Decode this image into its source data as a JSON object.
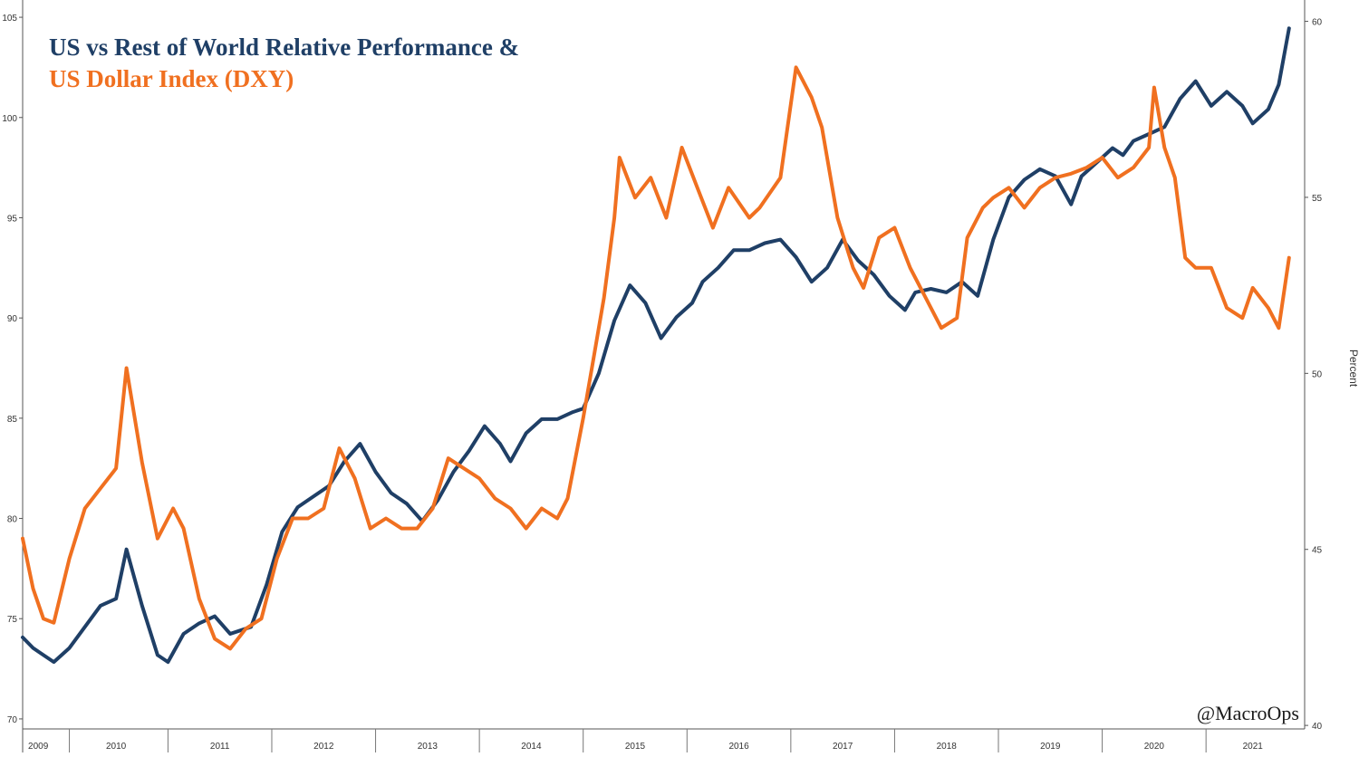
{
  "chart_data": {
    "type": "line",
    "title_line1_main": "US vs Rest of World Relative Performance",
    "title_line1_amp": "&",
    "title_line2": "US Dollar Index (DXY)",
    "watermark": "@MacroOps",
    "left_axis": {
      "range": [
        69.5,
        105.5
      ],
      "ticks": [
        "70",
        "75",
        "80",
        "85",
        "90",
        "95",
        "100",
        "105"
      ]
    },
    "right_axis": {
      "label": "Percent",
      "range": [
        39.9,
        60.4
      ],
      "ticks": [
        "40",
        "45",
        "50",
        "55",
        "60"
      ]
    },
    "x_range": [
      2009.0,
      2021.35
    ],
    "x_tick_labels": [
      "2009",
      "2010",
      "2011",
      "2012",
      "2013",
      "2014",
      "2015",
      "2016",
      "2017",
      "2018",
      "2019",
      "2020",
      "2021"
    ],
    "x_label_positions": [
      2009.15,
      2009.9,
      2010.9,
      2011.9,
      2012.9,
      2013.9,
      2014.9,
      2015.9,
      2016.9,
      2017.9,
      2018.9,
      2019.9,
      2020.85
    ],
    "x_separators": [
      2009.45,
      2010.4,
      2011.4,
      2012.4,
      2013.4,
      2014.4,
      2015.4,
      2016.4,
      2017.4,
      2018.4,
      2019.4,
      2020.4
    ],
    "series": [
      {
        "name": "US vs Rest of World Relative Performance",
        "axis": "right",
        "color": "#1f3f66",
        "x": [
          2009.0,
          2009.1,
          2009.2,
          2009.3,
          2009.45,
          2009.6,
          2009.75,
          2009.9,
          2010.0,
          2010.15,
          2010.3,
          2010.4,
          2010.55,
          2010.7,
          2010.85,
          2011.0,
          2011.2,
          2011.35,
          2011.5,
          2011.65,
          2011.8,
          2011.95,
          2012.1,
          2012.25,
          2012.4,
          2012.55,
          2012.7,
          2012.85,
          2013.0,
          2013.15,
          2013.3,
          2013.45,
          2013.6,
          2013.7,
          2013.85,
          2014.0,
          2014.15,
          2014.3,
          2014.4,
          2014.55,
          2014.7,
          2014.85,
          2015.0,
          2015.15,
          2015.3,
          2015.45,
          2015.55,
          2015.7,
          2015.85,
          2016.0,
          2016.15,
          2016.3,
          2016.45,
          2016.6,
          2016.75,
          2016.9,
          2017.05,
          2017.2,
          2017.35,
          2017.5,
          2017.6,
          2017.75,
          2017.9,
          2018.05,
          2018.2,
          2018.35,
          2018.5,
          2018.65,
          2018.8,
          2018.95,
          2019.1,
          2019.2,
          2019.35,
          2019.5,
          2019.6,
          2019.7,
          2019.85,
          2020.0,
          2020.15,
          2020.3,
          2020.45,
          2020.6,
          2020.75,
          2020.85,
          2021.0,
          2021.1,
          2021.2
        ],
        "y": [
          42.5,
          42.2,
          42.0,
          41.8,
          42.2,
          42.8,
          43.4,
          43.6,
          45.0,
          43.4,
          42.0,
          41.8,
          42.6,
          42.9,
          43.1,
          42.6,
          42.8,
          44.0,
          45.5,
          46.2,
          46.5,
          46.8,
          47.5,
          48.0,
          47.2,
          46.6,
          46.3,
          45.8,
          46.4,
          47.2,
          47.8,
          48.5,
          48.0,
          47.5,
          48.3,
          48.7,
          48.7,
          48.9,
          49.0,
          50.0,
          51.5,
          52.5,
          52.0,
          51.0,
          51.6,
          52.0,
          52.6,
          53.0,
          53.5,
          53.5,
          53.7,
          53.8,
          53.3,
          52.6,
          53.0,
          53.8,
          53.2,
          52.8,
          52.2,
          51.8,
          52.3,
          52.4,
          52.3,
          52.6,
          52.2,
          53.8,
          55.0,
          55.5,
          55.8,
          55.6,
          54.8,
          55.6,
          56.0,
          56.4,
          56.2,
          56.6,
          56.8,
          57.0,
          57.8,
          58.3,
          57.6,
          58.0,
          57.6,
          57.1,
          57.5,
          58.2,
          59.8
        ]
      },
      {
        "name": "US Dollar Index (DXY)",
        "axis": "left",
        "color": "#f07020",
        "x": [
          2009.0,
          2009.1,
          2009.2,
          2009.3,
          2009.45,
          2009.6,
          2009.75,
          2009.9,
          2010.0,
          2010.15,
          2010.3,
          2010.45,
          2010.55,
          2010.7,
          2010.85,
          2011.0,
          2011.15,
          2011.3,
          2011.45,
          2011.6,
          2011.75,
          2011.9,
          2012.05,
          2012.2,
          2012.35,
          2012.5,
          2012.65,
          2012.8,
          2012.95,
          2013.1,
          2013.25,
          2013.4,
          2013.55,
          2013.7,
          2013.85,
          2014.0,
          2014.15,
          2014.25,
          2014.4,
          2014.5,
          2014.6,
          2014.7,
          2014.75,
          2014.9,
          2015.05,
          2015.2,
          2015.35,
          2015.5,
          2015.65,
          2015.8,
          2016.0,
          2016.1,
          2016.3,
          2016.45,
          2016.6,
          2016.7,
          2016.85,
          2017.0,
          2017.1,
          2017.25,
          2017.4,
          2017.55,
          2017.7,
          2017.85,
          2018.0,
          2018.1,
          2018.25,
          2018.35,
          2018.5,
          2018.65,
          2018.8,
          2018.95,
          2019.1,
          2019.25,
          2019.4,
          2019.55,
          2019.7,
          2019.85,
          2019.9,
          2020.0,
          2020.1,
          2020.2,
          2020.3,
          2020.45,
          2020.6,
          2020.75,
          2020.85,
          2021.0,
          2021.1,
          2021.2
        ],
        "y": [
          79.0,
          76.5,
          75.0,
          74.8,
          78.0,
          80.5,
          81.5,
          82.5,
          87.5,
          82.8,
          79.0,
          80.5,
          79.5,
          76.0,
          74.0,
          73.5,
          74.5,
          75.0,
          78.0,
          80.0,
          80.0,
          80.5,
          83.5,
          82.0,
          79.5,
          80.0,
          79.5,
          79.5,
          80.5,
          83.0,
          82.5,
          82.0,
          81.0,
          80.5,
          79.5,
          80.5,
          80.0,
          81.0,
          85.0,
          88.0,
          91.0,
          95.0,
          98.0,
          96.0,
          97.0,
          95.0,
          98.5,
          96.5,
          94.5,
          96.5,
          95.0,
          95.5,
          97.0,
          102.5,
          101.0,
          99.5,
          95.0,
          92.5,
          91.5,
          94.0,
          94.5,
          92.5,
          91.0,
          89.5,
          90.0,
          94.0,
          95.5,
          96.0,
          96.5,
          95.5,
          96.5,
          97.0,
          97.2,
          97.5,
          98.0,
          97.0,
          97.5,
          98.5,
          101.5,
          98.5,
          97.0,
          93.0,
          92.5,
          92.5,
          90.5,
          90.0,
          91.5,
          90.5,
          89.5,
          93.0
        ]
      }
    ]
  }
}
